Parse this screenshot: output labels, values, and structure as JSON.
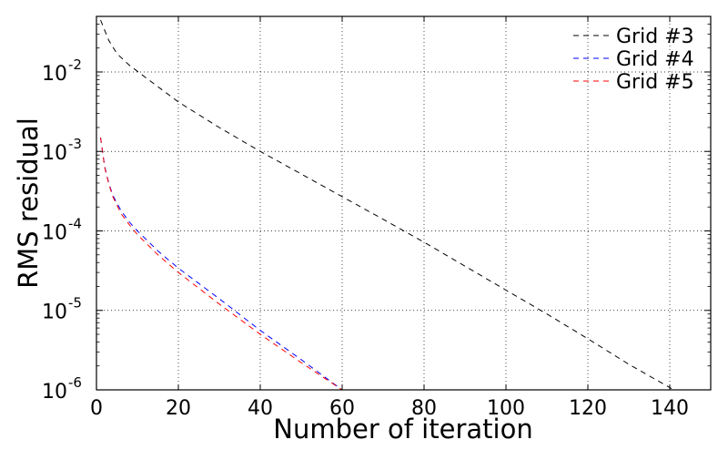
{
  "chart_data": {
    "type": "line",
    "title": "",
    "xlabel": "Number of iteration",
    "ylabel": "RMS residual",
    "xlim": [
      0,
      150
    ],
    "ylim": [
      1e-06,
      0.05
    ],
    "yscale": "log",
    "grid": true,
    "legend_position": "top-right",
    "x_ticks": [
      {
        "value": 0,
        "label": "0"
      },
      {
        "value": 20,
        "label": "20"
      },
      {
        "value": 40,
        "label": "40"
      },
      {
        "value": 60,
        "label": "60"
      },
      {
        "value": 80,
        "label": "80"
      },
      {
        "value": 100,
        "label": "100"
      },
      {
        "value": 120,
        "label": "120"
      },
      {
        "value": 140,
        "label": "140"
      }
    ],
    "y_ticks": [
      {
        "value": 1e-06,
        "base": "10",
        "exponent": "-6"
      },
      {
        "value": 1e-05,
        "base": "10",
        "exponent": "-5"
      },
      {
        "value": 0.0001,
        "base": "10",
        "exponent": "-4"
      },
      {
        "value": 0.001,
        "base": "10",
        "exponent": "-3"
      },
      {
        "value": 0.01,
        "base": "10",
        "exponent": "-2"
      }
    ],
    "series": [
      {
        "name": "Grid #3",
        "color": "#000000",
        "dash": "dashed",
        "x": [
          1,
          3,
          5,
          8,
          12,
          20,
          30,
          40,
          50,
          60,
          70,
          80,
          90,
          100,
          110,
          120,
          130,
          141
        ],
        "y": [
          0.045,
          0.025,
          0.017,
          0.0122,
          0.0085,
          0.0042,
          0.002,
          0.001,
          0.00052,
          0.00027,
          0.00014,
          7.2e-05,
          3.6e-05,
          1.8e-05,
          9e-06,
          4.4e-06,
          2.1e-06,
          1e-06
        ]
      },
      {
        "name": "Grid #4",
        "color": "#0000ff",
        "dash": "dashed",
        "x": [
          1,
          2,
          3,
          4,
          6,
          8,
          10,
          15,
          20,
          30,
          40,
          50,
          60
        ],
        "y": [
          0.0015,
          0.00065,
          0.0004,
          0.00028,
          0.00018,
          0.00013,
          0.0001,
          5.6e-05,
          3.4e-05,
          1.4e-05,
          5.6e-06,
          2.4e-06,
          1e-06
        ]
      },
      {
        "name": "Grid #5",
        "color": "#ff0000",
        "dash": "dashed",
        "x": [
          1,
          2,
          3,
          4,
          6,
          8,
          10,
          15,
          20,
          30,
          40,
          50,
          60
        ],
        "y": [
          0.0015,
          0.00063,
          0.00039,
          0.00027,
          0.000165,
          0.00012,
          9e-05,
          5e-05,
          3e-05,
          1.2e-05,
          5e-06,
          2.2e-06,
          1e-06
        ]
      }
    ]
  }
}
